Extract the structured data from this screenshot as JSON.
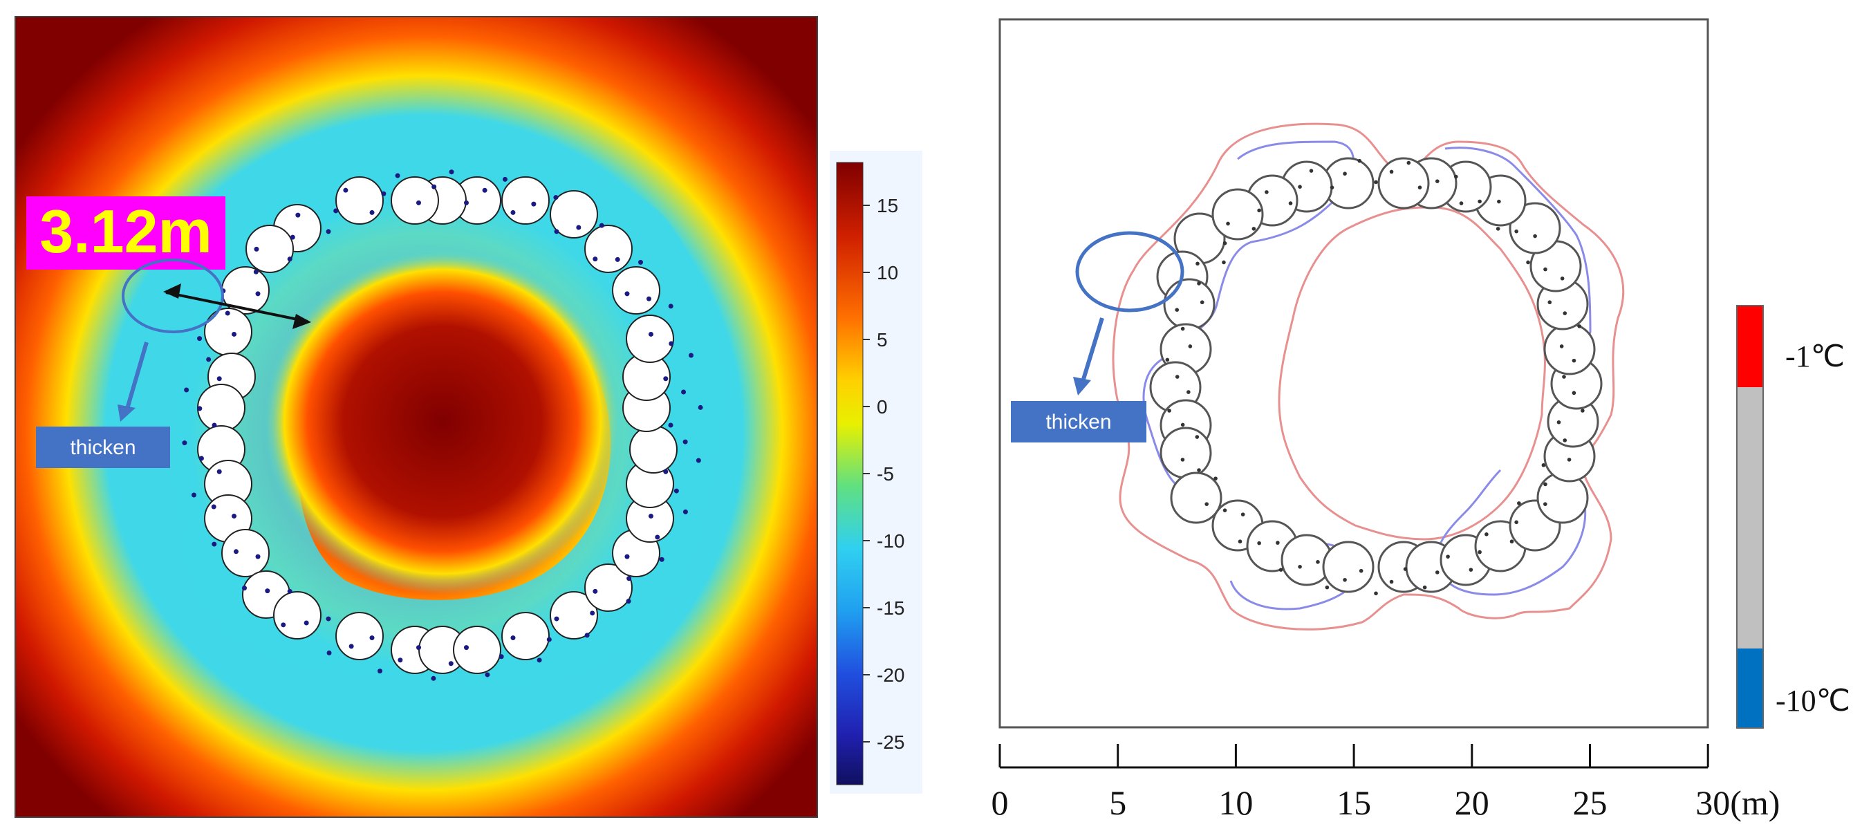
{
  "left_panel": {
    "measurement_label": "3.12m",
    "callout_label": "thicken",
    "colorbar_ticks": [
      "15",
      "10",
      "5",
      "0",
      "-5",
      "-10",
      "-15",
      "-20",
      "-25"
    ]
  },
  "right_panel": {
    "callout_label": "thicken",
    "scale_ticks": [
      "0",
      "5",
      "10",
      "15",
      "20",
      "25",
      "30(m)"
    ],
    "legend_top_label": "-1℃",
    "legend_bottom_label": "-10℃"
  },
  "colors": {
    "hot": "#7f0000",
    "warm": "#e02000",
    "cold": "#3ad0f0",
    "callout_box": "#4472c4",
    "measurement_bg": "#ff00ff",
    "measurement_text": "#ffff00",
    "legend_red": "#ff0000",
    "legend_gray": "#c0c0c0",
    "legend_blue": "#0070c0",
    "contour_red": "#e89090",
    "contour_blue": "#8a8ae8"
  }
}
